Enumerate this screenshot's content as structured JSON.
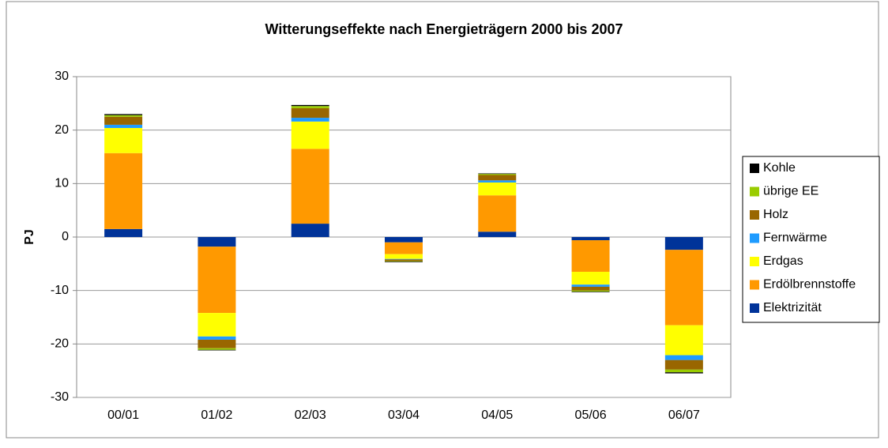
{
  "chart_data": {
    "type": "stacked_bar",
    "title": "Witterungseffekte nach Energieträgern 2000 bis 2007",
    "y_label": "PJ",
    "categories": [
      "00/01",
      "01/02",
      "02/03",
      "03/04",
      "04/05",
      "05/06",
      "06/07"
    ],
    "series": [
      {
        "name": "Elektrizität",
        "color": "#003399",
        "values": [
          1.5,
          -1.8,
          2.5,
          -1.0,
          1.0,
          -0.6,
          -2.4
        ]
      },
      {
        "name": "Erdölbrennstoffe",
        "color": "#ff9900",
        "values": [
          14.2,
          -12.4,
          14.0,
          -2.2,
          6.8,
          -5.9,
          -14.1
        ]
      },
      {
        "name": "Erdgas",
        "color": "#ffff00",
        "values": [
          4.7,
          -4.4,
          5.1,
          -0.9,
          2.4,
          -2.4,
          -5.6
        ]
      },
      {
        "name": "Fernwärme",
        "color": "#1e9bff",
        "values": [
          0.6,
          -0.6,
          0.7,
          -0.1,
          0.4,
          -0.4,
          -0.9
        ]
      },
      {
        "name": "Holz",
        "color": "#996600",
        "values": [
          1.5,
          -1.6,
          1.8,
          -0.3,
          1.0,
          -0.7,
          -1.8
        ]
      },
      {
        "name": "übrige EE",
        "color": "#99cc00",
        "values": [
          0.3,
          -0.3,
          0.4,
          -0.1,
          0.2,
          -0.2,
          -0.5
        ]
      },
      {
        "name": "Kohle",
        "color": "#000000",
        "values": [
          0.2,
          -0.1,
          0.2,
          -0.1,
          0.1,
          -0.1,
          -0.2
        ]
      }
    ],
    "ylim": [
      -30,
      30
    ],
    "yticks": [
      -30,
      -20,
      -10,
      0,
      10,
      20,
      30
    ],
    "grid": true,
    "legend": "right"
  }
}
